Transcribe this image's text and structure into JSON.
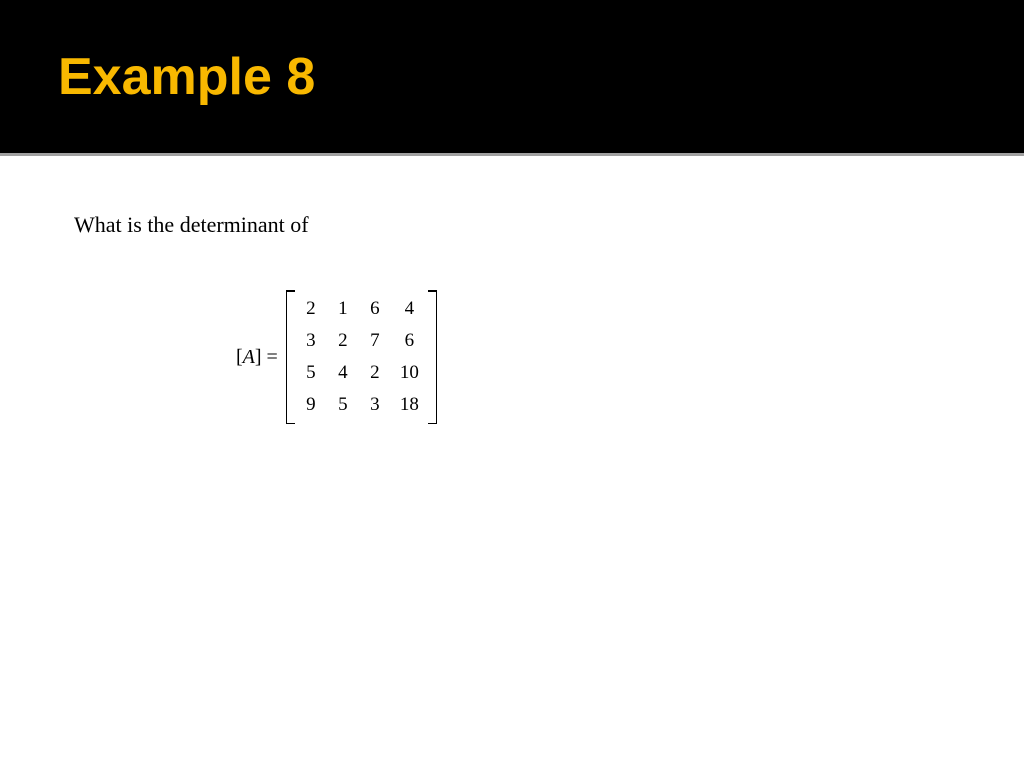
{
  "header": {
    "title": "Example 8",
    "title_color": "#f8b800",
    "background": "#000000",
    "title_fontsize": 52
  },
  "divider_color": "#a0a0a0",
  "content": {
    "question": "What is the determinant of",
    "question_fontsize": 22,
    "equation_label_prefix": "[",
    "equation_label_variable": "A",
    "equation_label_suffix": "] =",
    "matrix": {
      "rows": 4,
      "cols": 4,
      "cells": [
        [
          "2",
          "1",
          "6",
          "4"
        ],
        [
          "3",
          "2",
          "7",
          "6"
        ],
        [
          "5",
          "4",
          "2",
          "10"
        ],
        [
          "9",
          "5",
          "3",
          "18"
        ]
      ],
      "cell_fontsize": 19,
      "bracket_color": "#000000"
    }
  },
  "background_color": "#ffffff"
}
